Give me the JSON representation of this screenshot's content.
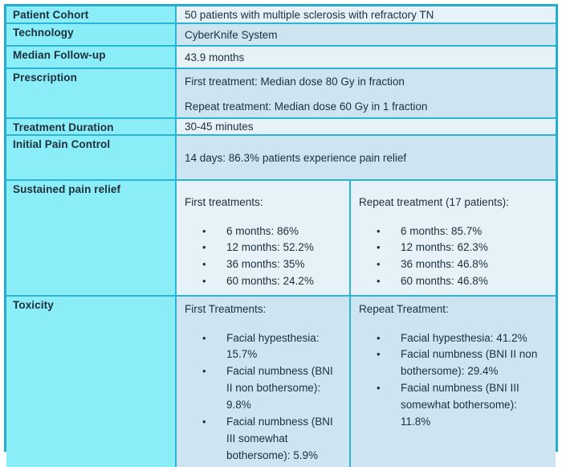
{
  "colors": {
    "label_bg": "#8aedf8",
    "content_bg_light": "#e6f2f8",
    "content_bg_dark": "#cde5f0",
    "border": "#2ab4d6",
    "outer_border": "#23add1",
    "text": "#1c2f3c",
    "page_bg": "#ffffff"
  },
  "icons": {
    "bullet": "•"
  },
  "rows": [
    {
      "label": "Patient Cohort",
      "text": "50 patients with multiple sclerosis with refractory TN"
    },
    {
      "label": "Technology",
      "text": "CyberKnife System"
    },
    {
      "label": "Median Follow-up",
      "text": "43.9 months"
    },
    {
      "label": "Prescription",
      "para1": "First treatment: Median dose 80 Gy in fraction",
      "para2": "Repeat treatment: Median dose 60 Gy in 1 fraction"
    },
    {
      "label": "Treatment Duration",
      "text": "30-45 minutes"
    },
    {
      "label": "Initial Pain Control",
      "text": "14 days: 86.3% patients experience pain relief"
    },
    {
      "label": "Sustained pain relief",
      "left": {
        "header": "First treatments:",
        "bullets": [
          "6 months: 86%",
          "12 months: 52.2%",
          "36 months: 35%",
          "60 months: 24.2%"
        ]
      },
      "right": {
        "header": "Repeat treatment (17 patients):",
        "bullets": [
          "6 months: 85.7%",
          "12 months: 62.3%",
          "36 months: 46.8%",
          "60 months: 46.8%"
        ]
      }
    },
    {
      "label": "Toxicity",
      "left": {
        "header": "First Treatments:",
        "bullets": [
          "Facial hypesthesia: 15.7%",
          "Facial numbness (BNI II non bothersome): 9.8%",
          "Facial numbness (BNI III somewhat bothersome): 5.9%"
        ]
      },
      "right": {
        "header": "Repeat Treatment:",
        "bullets": [
          "Facial hypesthesia: 41.2%",
          "Facial numbness (BNI II non bothersome): 29.4%",
          "Facial numbness (BNI III somewhat bothersome): 11.8%"
        ]
      }
    }
  ]
}
